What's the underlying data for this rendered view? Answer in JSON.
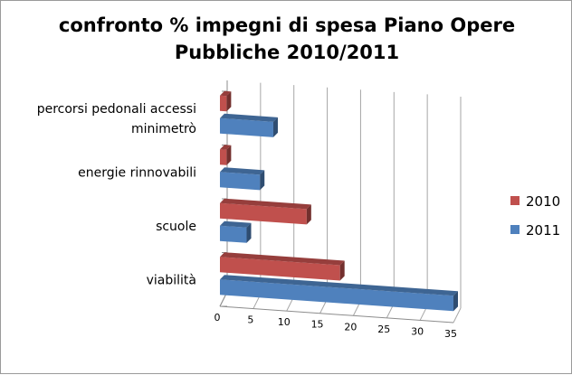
{
  "chart_data": {
    "type": "bar",
    "orientation": "horizontal",
    "style": "3d-clustered",
    "title_lines": [
      "confronto % impegni di spesa Piano Opere",
      "Pubbliche 2010/2011"
    ],
    "categories": [
      "percorsi pedonali accessi minimetrò",
      "energie rinnovabili",
      "scuole",
      "viabilità"
    ],
    "category_lines": [
      [
        "percorsi pedonali accessi",
        "minimetrò"
      ],
      [
        "energie rinnovabili"
      ],
      [
        "scuole"
      ],
      [
        "viabilità"
      ]
    ],
    "series": [
      {
        "name": "2010",
        "color": "#c0504d",
        "values": [
          1,
          1,
          13,
          18
        ]
      },
      {
        "name": "2011",
        "color": "#4f81bd",
        "values": [
          8,
          6,
          4,
          35
        ]
      }
    ],
    "xlim": [
      0,
      35
    ],
    "xticks": [
      0,
      5,
      10,
      15,
      20,
      25,
      30,
      35
    ],
    "grid": true,
    "legend_position": "right"
  }
}
